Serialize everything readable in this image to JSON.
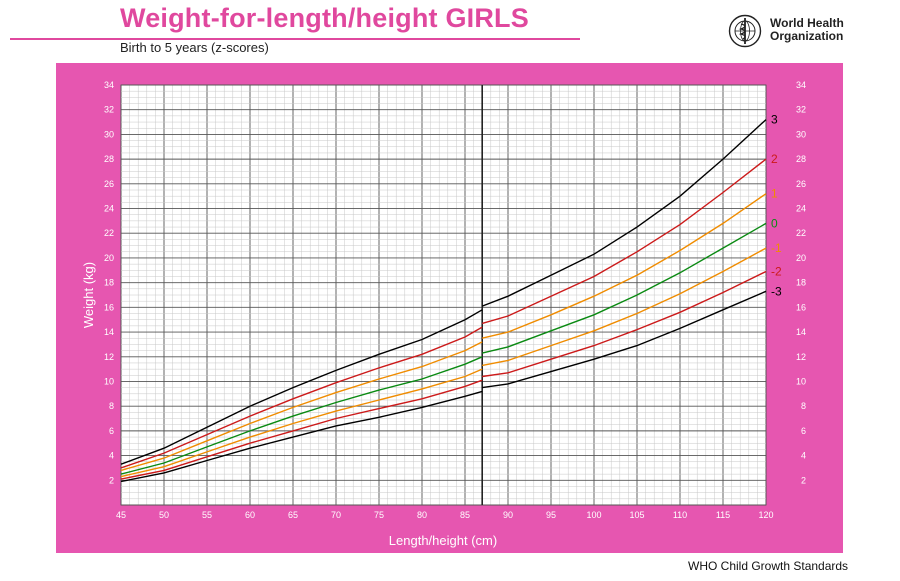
{
  "header": {
    "title": "Weight-for-length/height  GIRLS",
    "subtitle": "Birth to 5 years (z-scores)"
  },
  "logo": {
    "org_name_line1": "World Health",
    "org_name_line2": "Organization",
    "icon": "who-emblem-icon"
  },
  "footer": {
    "text": "WHO Child Growth Standards"
  },
  "colors": {
    "frame": "#e656b0",
    "title": "#e0489e",
    "sd3": "#000000",
    "sd2": "#cc1a1a",
    "sd1": "#f08c00",
    "sd0": "#0a8a12"
  },
  "chart_data": {
    "type": "line",
    "xlabel": "Length/height (cm)",
    "ylabel": "Weight (kg)",
    "xlim": [
      45,
      120
    ],
    "ylim": [
      0,
      34
    ],
    "x_ticks": [
      45,
      50,
      55,
      60,
      65,
      70,
      75,
      80,
      85,
      90,
      95,
      100,
      105,
      110,
      115,
      120
    ],
    "y_ticks": [
      2,
      4,
      6,
      8,
      10,
      12,
      14,
      16,
      18,
      20,
      22,
      24,
      26,
      28,
      30,
      32,
      34
    ],
    "grid": true,
    "legend": "right end labels",
    "x": [
      45,
      50,
      55,
      60,
      65,
      70,
      75,
      80,
      85,
      87,
      90,
      95,
      100,
      105,
      110,
      115,
      120
    ],
    "series": [
      {
        "name": "3",
        "color": "#000000",
        "values": [
          3.3,
          4.6,
          6.3,
          8.0,
          9.5,
          10.9,
          12.2,
          13.4,
          15.0,
          15.8,
          16.9,
          18.6,
          20.3,
          22.5,
          25.0,
          28.0,
          31.2
        ]
      },
      {
        "name": "2",
        "color": "#cc1a1a",
        "values": [
          3.0,
          4.2,
          5.7,
          7.2,
          8.6,
          9.9,
          11.1,
          12.2,
          13.6,
          14.4,
          15.3,
          16.9,
          18.5,
          20.5,
          22.7,
          25.3,
          28.0
        ]
      },
      {
        "name": "1",
        "color": "#f08c00",
        "values": [
          2.8,
          3.8,
          5.2,
          6.6,
          7.9,
          9.1,
          10.2,
          11.2,
          12.5,
          13.2,
          14.0,
          15.4,
          16.9,
          18.6,
          20.6,
          22.8,
          25.2
        ]
      },
      {
        "name": "0",
        "color": "#0a8a12",
        "values": [
          2.5,
          3.4,
          4.7,
          6.0,
          7.2,
          8.3,
          9.3,
          10.2,
          11.4,
          12.0,
          12.8,
          14.1,
          15.4,
          17.0,
          18.8,
          20.8,
          22.8
        ]
      },
      {
        "name": "-1",
        "color": "#f08c00",
        "values": [
          2.3,
          3.1,
          4.3,
          5.5,
          6.6,
          7.6,
          8.5,
          9.4,
          10.4,
          11.0,
          11.7,
          12.9,
          14.1,
          15.5,
          17.1,
          18.9,
          20.8
        ]
      },
      {
        "name": "-2",
        "color": "#cc1a1a",
        "values": [
          2.1,
          2.8,
          3.9,
          5.0,
          6.0,
          7.0,
          7.8,
          8.6,
          9.6,
          10.1,
          10.7,
          11.8,
          12.9,
          14.2,
          15.6,
          17.2,
          18.9
        ]
      },
      {
        "name": "-3",
        "color": "#000000",
        "values": [
          1.9,
          2.6,
          3.6,
          4.6,
          5.5,
          6.4,
          7.1,
          7.9,
          8.8,
          9.2,
          9.8,
          10.8,
          11.8,
          12.9,
          14.3,
          15.8,
          17.3
        ]
      }
    ]
  }
}
